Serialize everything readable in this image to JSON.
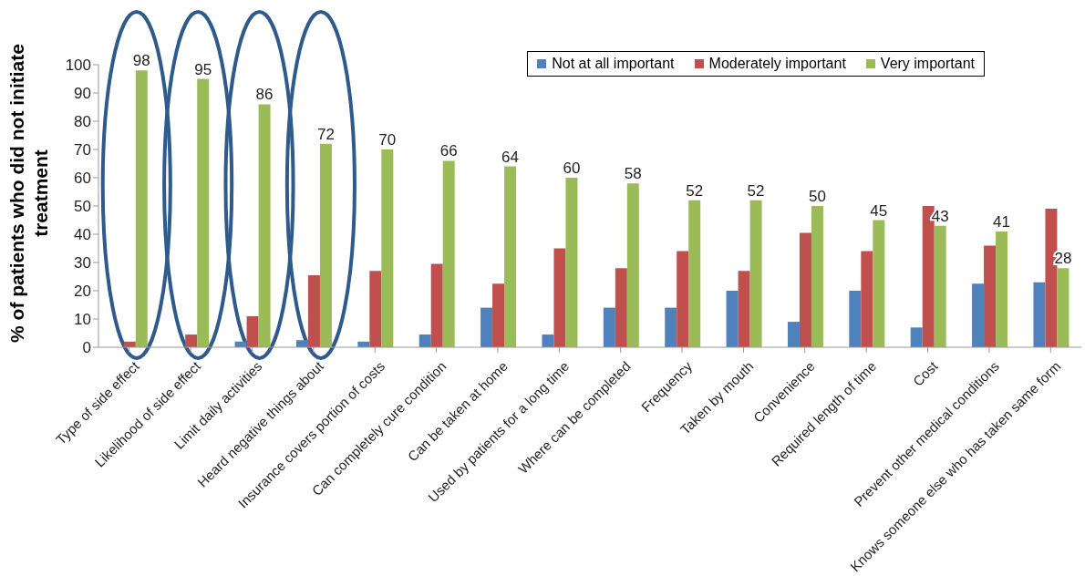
{
  "chart_data": {
    "type": "bar",
    "ylabel": "% of patients who did not initiate treatment",
    "categories": [
      "Type of side effect",
      "Likelihood of side effect",
      "Limit daily activities",
      "Heard negative things about",
      "Insurance covers portion of costs",
      "Can completely cure condition",
      "Can be taken at home",
      "Used by patients for a long time",
      "Where can be completed",
      "Frequency",
      "Taken by mouth",
      "Convenience",
      "Required length of time",
      "Cost",
      "Prevent other medical conditions",
      "Knows someone else who has taken same form"
    ],
    "series": [
      {
        "name": "Not at all important",
        "color": "#4f81bd",
        "values": [
          0,
          0,
          2,
          2.5,
          2,
          4.5,
          14,
          4.5,
          14,
          14,
          20,
          9,
          20,
          7,
          22.5,
          23
        ]
      },
      {
        "name": "Moderately important",
        "color": "#c0504d",
        "values": [
          2,
          4.5,
          11,
          25.5,
          27,
          29.5,
          22.5,
          35,
          28,
          34,
          27,
          40.5,
          34,
          50,
          36,
          49
        ]
      },
      {
        "name": "Very important",
        "color": "#9bbb59",
        "values": [
          98,
          95,
          86,
          72,
          70,
          66,
          64,
          60,
          58,
          52,
          52,
          50,
          45,
          43,
          41,
          28
        ],
        "value_labels": [
          "98",
          "95",
          "86",
          "72",
          "70",
          "66",
          "64",
          "60",
          "58",
          "52",
          "52",
          "50",
          "45",
          "43",
          "41",
          "28"
        ]
      }
    ],
    "ylim": [
      0,
      100
    ],
    "yticks": [
      0,
      10,
      20,
      30,
      40,
      50,
      60,
      70,
      80,
      90,
      100
    ],
    "grid": false,
    "legend": "top right"
  }
}
